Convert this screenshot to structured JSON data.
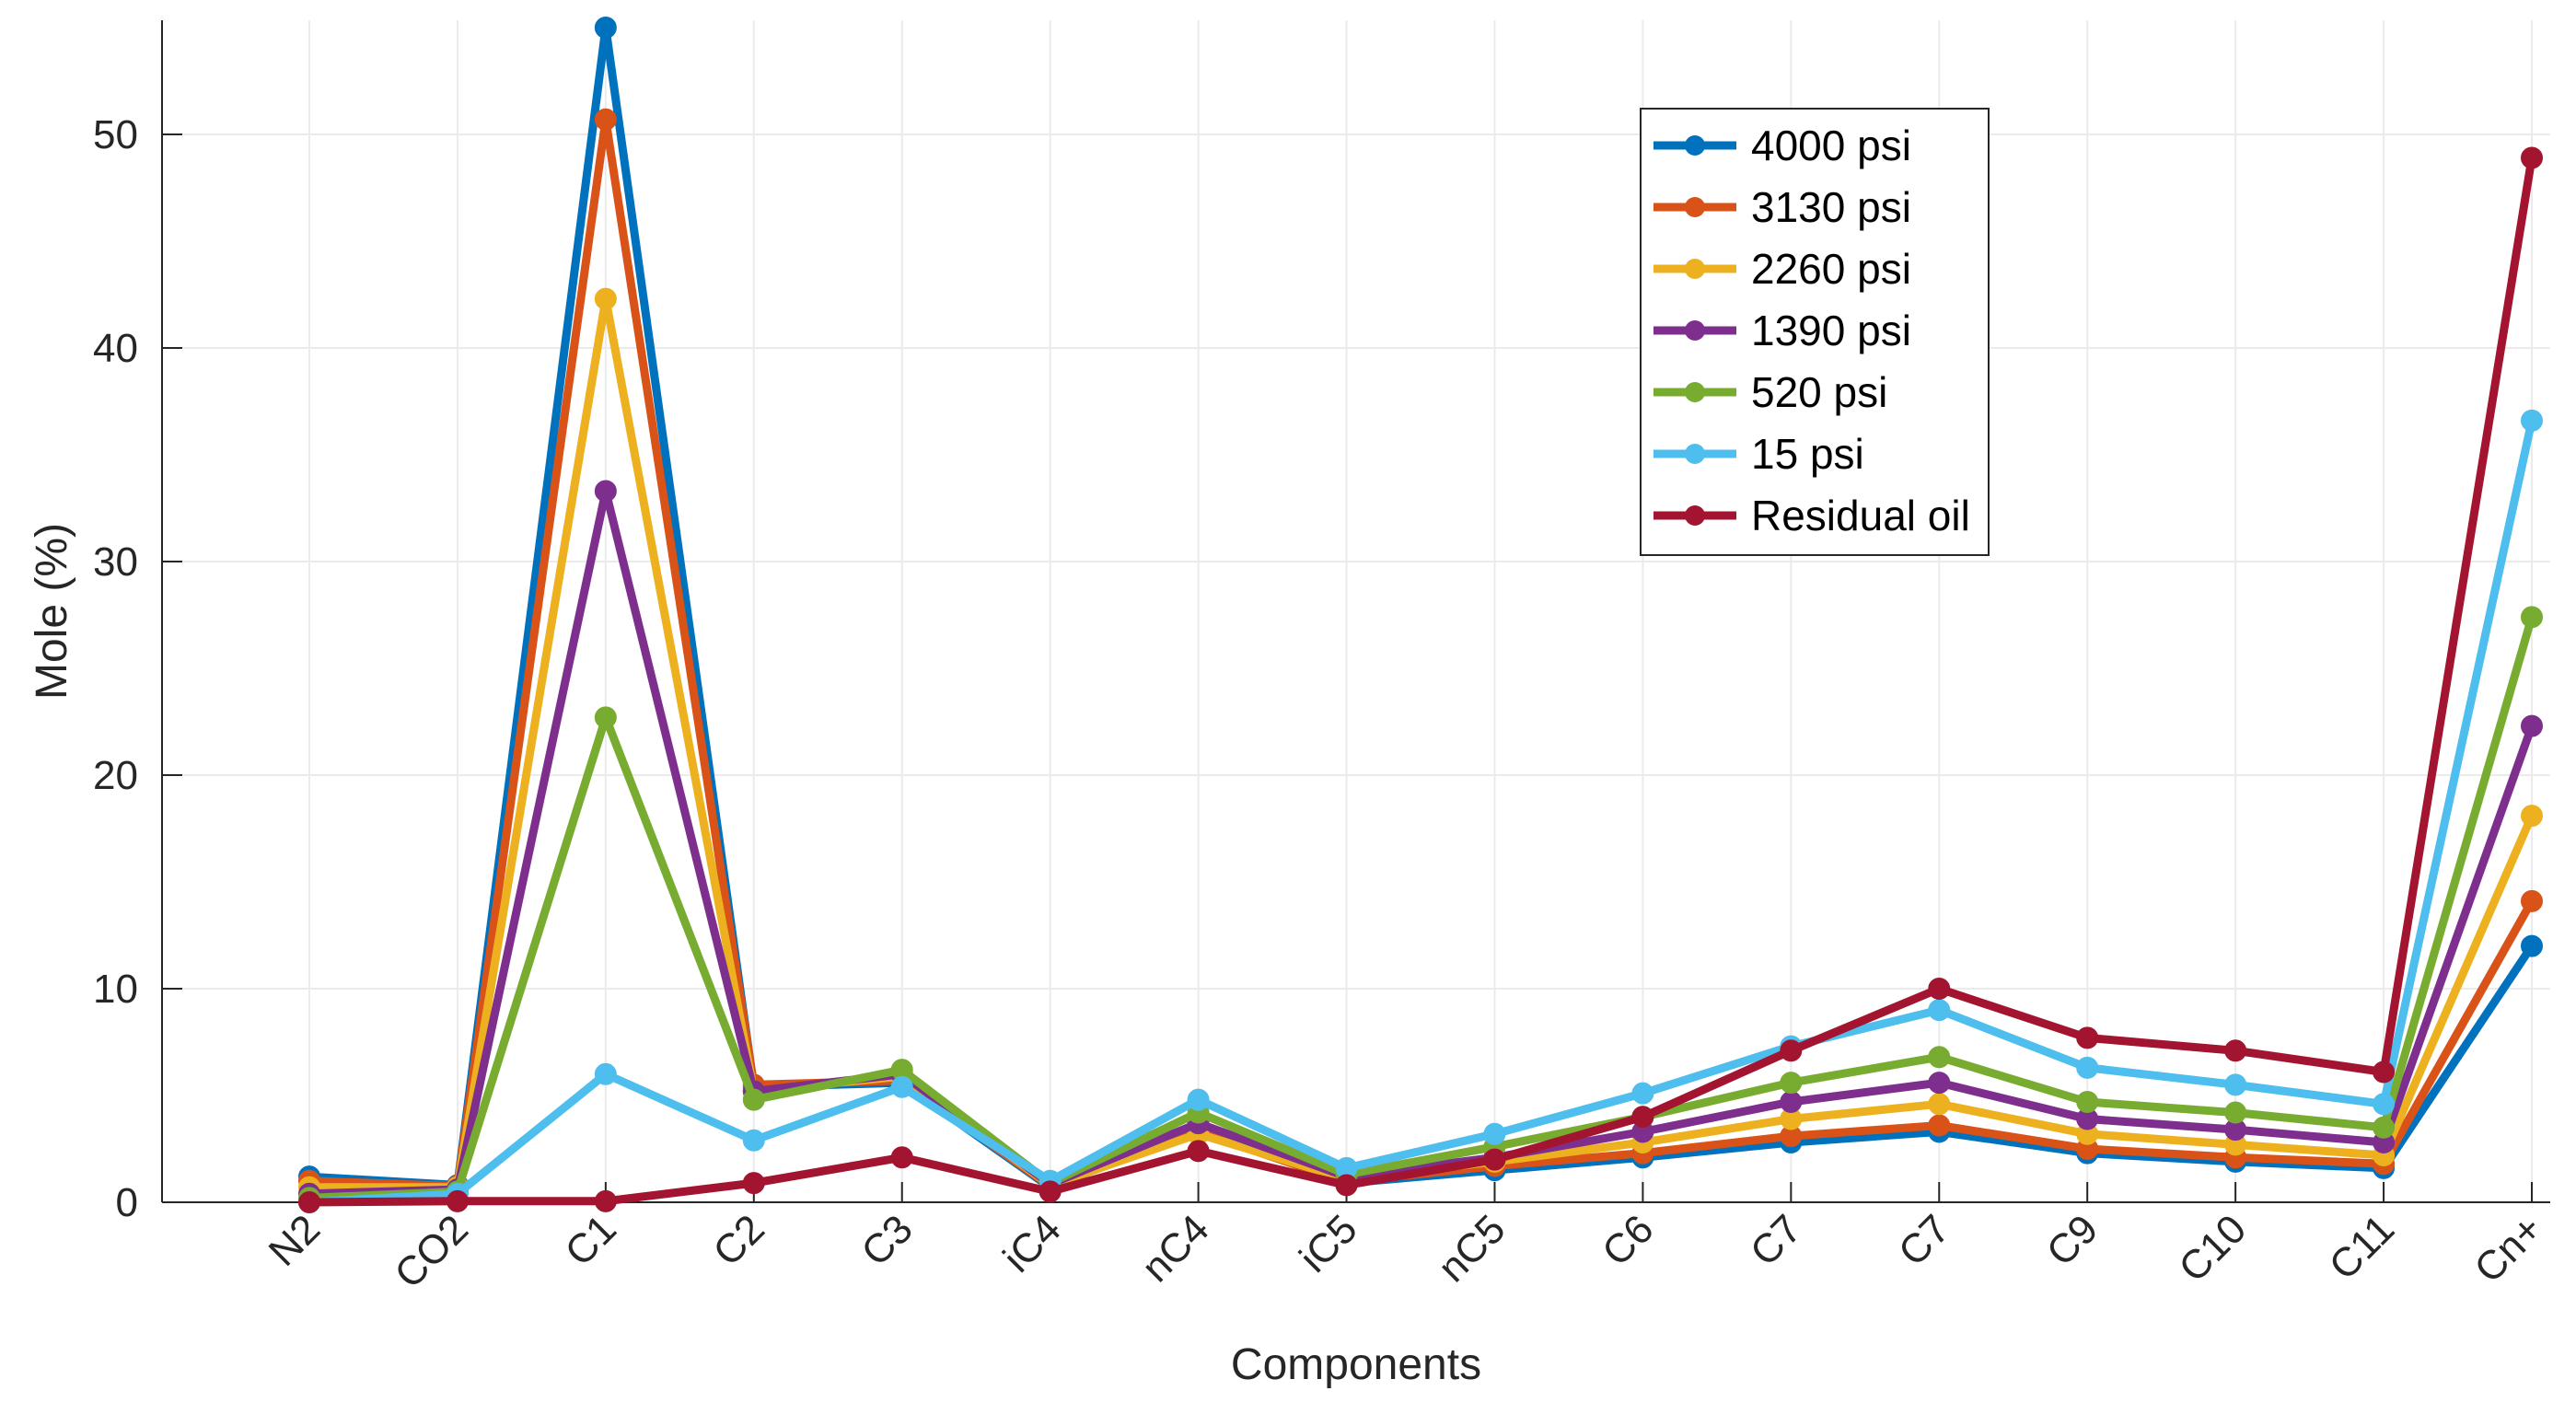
{
  "chart_data": {
    "type": "line",
    "title": "",
    "xlabel": "Components",
    "ylabel": "Mole (%)",
    "categories": [
      "N2",
      "CO2",
      "C1",
      "C2",
      "C3",
      "iC4",
      "nC4",
      "iC5",
      "nC5",
      "C6",
      "C7",
      "C7",
      "C9",
      "C10",
      "C11",
      "Cn+"
    ],
    "ylim": [
      0,
      55
    ],
    "yticks": [
      0,
      10,
      20,
      30,
      40,
      50
    ],
    "grid": true,
    "legend_position": "top-right",
    "series": [
      {
        "name": "4000 psi",
        "color": "#0072BD",
        "values": [
          1.2,
          0.8,
          55.0,
          5.4,
          5.6,
          0.7,
          3.6,
          0.9,
          1.5,
          2.1,
          2.8,
          3.3,
          2.3,
          1.9,
          1.6,
          12.0
        ]
      },
      {
        "name": "3130 psi",
        "color": "#D95319",
        "values": [
          1.0,
          0.75,
          50.7,
          5.5,
          5.7,
          0.75,
          3.3,
          0.95,
          1.7,
          2.3,
          3.1,
          3.6,
          2.5,
          2.1,
          1.8,
          14.1
        ]
      },
      {
        "name": "2260 psi",
        "color": "#EDB120",
        "values": [
          0.7,
          0.7,
          42.3,
          5.2,
          5.9,
          0.8,
          3.2,
          1.1,
          1.9,
          2.8,
          3.9,
          4.6,
          3.2,
          2.7,
          2.2,
          18.1
        ]
      },
      {
        "name": "1390 psi",
        "color": "#7E2F8E",
        "values": [
          0.4,
          0.6,
          33.3,
          5.2,
          6.0,
          0.85,
          3.7,
          1.2,
          2.1,
          3.3,
          4.7,
          5.6,
          3.9,
          3.4,
          2.8,
          22.3
        ]
      },
      {
        "name": "520 psi",
        "color": "#77AC30",
        "values": [
          0.2,
          0.5,
          22.7,
          4.8,
          6.2,
          0.9,
          4.2,
          1.3,
          2.6,
          4.0,
          5.6,
          6.8,
          4.7,
          4.2,
          3.5,
          27.4
        ]
      },
      {
        "name": "15 psi",
        "color": "#4DBEEE",
        "values": [
          0.0,
          0.4,
          6.0,
          2.9,
          5.4,
          1.0,
          4.8,
          1.6,
          3.2,
          5.1,
          7.3,
          9.0,
          6.3,
          5.5,
          4.6,
          36.6
        ]
      },
      {
        "name": "Residual oil",
        "color": "#A2142F",
        "values": [
          0.0,
          0.05,
          0.05,
          0.9,
          2.1,
          0.5,
          2.4,
          0.8,
          2.0,
          4.0,
          7.1,
          10.0,
          7.7,
          7.1,
          6.1,
          48.9
        ]
      }
    ]
  }
}
